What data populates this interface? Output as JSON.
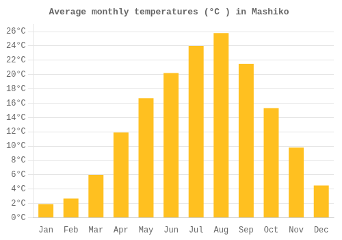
{
  "chart_data": {
    "type": "bar",
    "title": "Average monthly temperatures (°C ) in Mashiko",
    "categories": [
      "Jan",
      "Feb",
      "Mar",
      "Apr",
      "May",
      "Jun",
      "Jul",
      "Aug",
      "Sep",
      "Oct",
      "Nov",
      "Dec"
    ],
    "values": [
      1.9,
      2.7,
      6.0,
      11.9,
      16.7,
      20.2,
      24.0,
      25.8,
      21.5,
      15.3,
      9.8,
      4.5
    ],
    "color": "#FFC020",
    "ylim": [
      0,
      27
    ],
    "yticks": [
      {
        "value": 0,
        "label": "0°C"
      },
      {
        "value": 2,
        "label": "2°C"
      },
      {
        "value": 4,
        "label": "4°C"
      },
      {
        "value": 6,
        "label": "6°C"
      },
      {
        "value": 8,
        "label": "8°C"
      },
      {
        "value": 10,
        "label": "10°C"
      },
      {
        "value": 12,
        "label": "12°C"
      },
      {
        "value": 14,
        "label": "14°C"
      },
      {
        "value": 16,
        "label": "16°C"
      },
      {
        "value": 18,
        "label": "18°C"
      },
      {
        "value": 20,
        "label": "20°C"
      },
      {
        "value": 22,
        "label": "22°C"
      },
      {
        "value": 24,
        "label": "24°C"
      },
      {
        "value": 26,
        "label": "26°C"
      }
    ],
    "grid": true
  }
}
